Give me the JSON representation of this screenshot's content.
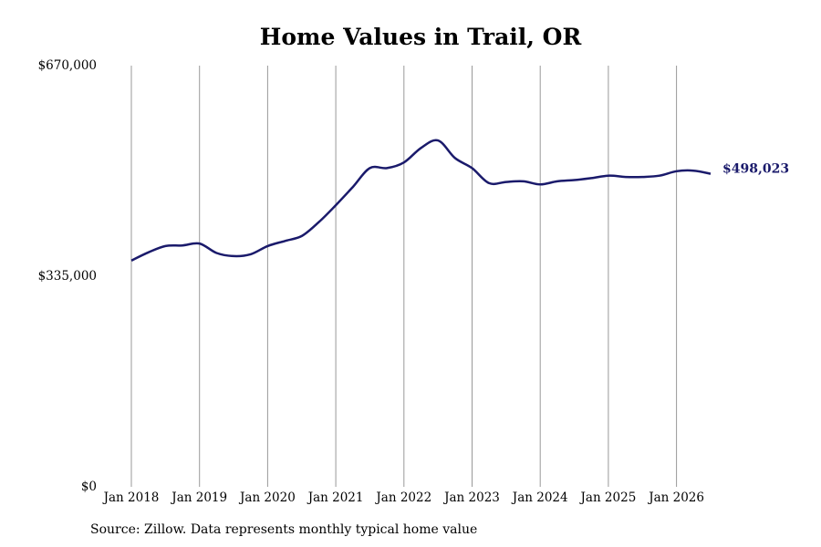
{
  "chart_data": {
    "type": "line",
    "title": "Home Values in Trail, OR",
    "ylim": [
      0,
      670000
    ],
    "y_ticks": [
      "$0",
      "$335,000",
      "$670,000"
    ],
    "x_ticks": [
      "Jan 2018",
      "Jan 2019",
      "Jan 2020",
      "Jan 2021",
      "Jan 2022",
      "Jan 2023",
      "Jan 2024",
      "Jan 2025",
      "Jan 2026"
    ],
    "grid": "vertical",
    "line_color": "#1a1a6b",
    "end_label": "$498,023",
    "series": [
      {
        "x": [
          "2018-01",
          "2018-04",
          "2018-07",
          "2018-10",
          "2019-01",
          "2019-04",
          "2019-07",
          "2019-10",
          "2020-01",
          "2020-04",
          "2020-07",
          "2020-10",
          "2021-01",
          "2021-04",
          "2021-07",
          "2021-10",
          "2022-01",
          "2022-04",
          "2022-07",
          "2022-10",
          "2023-01",
          "2023-04",
          "2023-07",
          "2023-10",
          "2024-01",
          "2024-04",
          "2024-07",
          "2024-10",
          "2025-01",
          "2025-04",
          "2025-07",
          "2025-10",
          "2026-01",
          "2026-04",
          "2026-07"
        ],
        "values": [
          360000,
          373000,
          383000,
          384000,
          387000,
          372000,
          367000,
          370000,
          383000,
          391000,
          399000,
          421000,
          448000,
          477000,
          507000,
          507000,
          516000,
          539000,
          551000,
          523000,
          507000,
          483000,
          485000,
          486000,
          481000,
          486000,
          488000,
          491000,
          495000,
          493000,
          493000,
          495000,
          502000,
          503000,
          498023
        ]
      }
    ]
  },
  "source": "Source: Zillow. Data represents monthly typical home value"
}
